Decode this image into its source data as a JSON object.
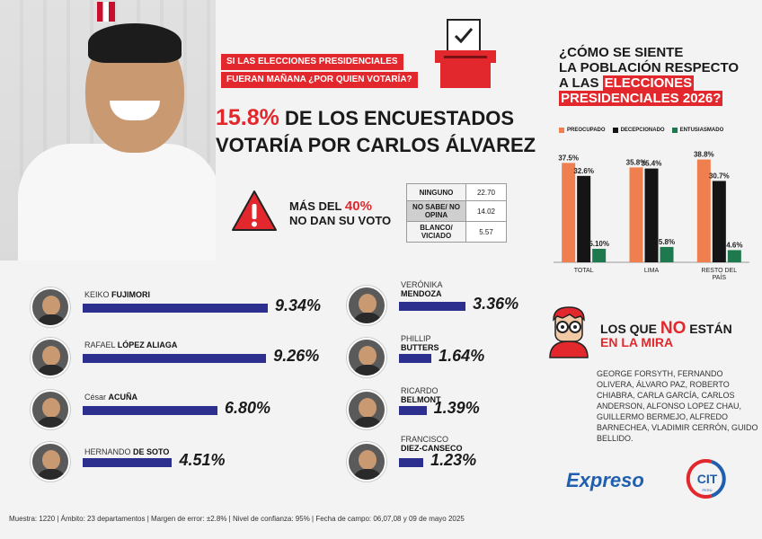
{
  "question": {
    "line1": "SI LAS ELECCIONES PRESIDENCIALES",
    "line2": "FUERAN MAÑANA ¿POR QUIEN VOTARÍA?"
  },
  "headline": {
    "pct": "15.8%",
    "rest1": "DE LOS ENCUESTADOS",
    "line2": "VOTARÍA POR CARLOS ÁLVAREZ"
  },
  "no_vote": {
    "prefix": "MÁS DEL",
    "pct": "40%",
    "line2": "NO DAN SU VOTO"
  },
  "mini_table": [
    {
      "label": "NINGUNO",
      "value": "22.70"
    },
    {
      "label": "NO SABE/ NO OPINA",
      "value": "14.02"
    },
    {
      "label": "BLANCO/ VICIADO",
      "value": "5.57"
    }
  ],
  "candidates_left": [
    {
      "first": "KEIKO",
      "last": "FUJIMORI",
      "value": "9.34%",
      "pct": 9.34
    },
    {
      "first": "RAFAEL",
      "last": "LÓPEZ ALIAGA",
      "value": "9.26%",
      "pct": 9.26
    },
    {
      "first": "César",
      "last": "ACUÑA",
      "value": "6.80%",
      "pct": 6.8
    },
    {
      "first": "HERNANDO",
      "last": "DE SOTO",
      "value": "4.51%",
      "pct": 4.51
    }
  ],
  "candidates_right": [
    {
      "first": "VERÓNIKA",
      "last": "MENDOZA",
      "value": "3.36%",
      "pct": 3.36
    },
    {
      "first": "PHILLIP",
      "last": "BUTTERS",
      "value": "1.64%",
      "pct": 1.64
    },
    {
      "first": "RICARDO",
      "last": "BELMONT",
      "value": "1.39%",
      "pct": 1.39
    },
    {
      "first": "FRANCISCO",
      "last": "DIEZ-CANSECO",
      "value": "1.23%",
      "pct": 1.23
    }
  ],
  "feeling": {
    "title1": "¿CÓMO SE SIENTE",
    "title2": "LA POBLACIÓN RESPECTO",
    "title3": "A LAS",
    "title_hl1": "ELECCIONES",
    "title_hl2": "PRESIDENCIALES 2026?"
  },
  "chart_data": {
    "type": "bar",
    "categories": [
      "TOTAL",
      "LIMA",
      "RESTO DEL PAÍS"
    ],
    "series": [
      {
        "name": "PREOCUPADO",
        "color": "#f07f4f",
        "values": [
          37.5,
          35.8,
          38.8
        ],
        "labels": [
          "37.5%",
          "35.8%",
          "38.8%"
        ]
      },
      {
        "name": "DECEPCIONADO",
        "color": "#151515",
        "values": [
          32.6,
          35.4,
          30.7
        ],
        "labels": [
          "32.6%",
          "35.4%",
          "30.7%"
        ]
      },
      {
        "name": "ENTUSIASMADO",
        "color": "#1e7a4e",
        "values": [
          5.1,
          5.8,
          4.6
        ],
        "labels": [
          "5.10%",
          "5.8%",
          "4.6%"
        ]
      }
    ],
    "ylim": [
      0,
      40
    ],
    "legend": "top"
  },
  "mira": {
    "title1_a": "LOS QUE",
    "title1_b": "NO",
    "title1_c": "ESTÁN",
    "title2": "EN LA MIRA",
    "list": "GEORGE FORSYTH, FERNANDO OLIVERA, ÁLVARO PAZ, ROBERTO CHIABRA, CARLA GARCÍA, CARLOS ANDERSON, ALFONSO LOPEZ CHAU, GUILLERMO BERMEJO, ALFREDO BARNECHEA, VLADIMIR CERRÓN, GUIDO BELLIDO."
  },
  "brand": {
    "expreso": "Expreso",
    "cit": "CIT",
    "cit_sub": "PERÚ"
  },
  "footer": "Muestra: 1220 | Ámbito: 23 departamentos | Margen de error: ±2.8% | Nivel de confianza: 95% | Fecha de campo: 06,07,08 y 09 de mayo 2025"
}
